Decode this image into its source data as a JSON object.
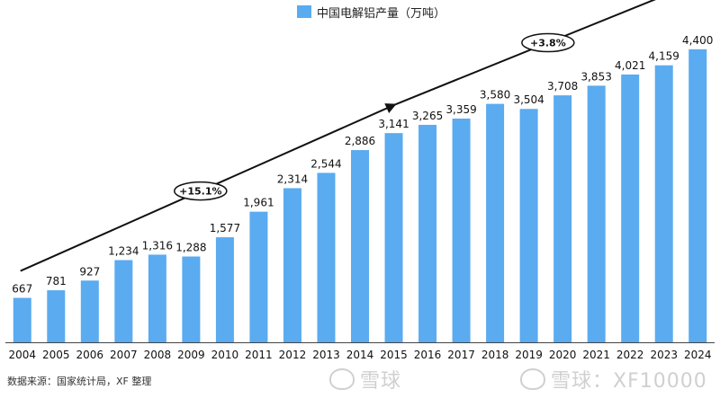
{
  "legend": {
    "label": "中国电解铝产量（万吨）",
    "color": "#5aabf0"
  },
  "source": "数据来源：国家统计局，XF 整理",
  "watermarks": [
    {
      "text": "雪球"
    },
    {
      "text": "雪球：XF10000"
    }
  ],
  "chart_data": {
    "type": "bar",
    "categories": [
      "2004",
      "2005",
      "2006",
      "2007",
      "2008",
      "2009",
      "2010",
      "2011",
      "2012",
      "2013",
      "2014",
      "2015",
      "2016",
      "2017",
      "2018",
      "2019",
      "2020",
      "2021",
      "2022",
      "2023",
      "2024"
    ],
    "series": [
      {
        "name": "中国电解铝产量（万吨）",
        "values": [
          667,
          781,
          927,
          1234,
          1316,
          1288,
          1577,
          1961,
          2314,
          2544,
          2886,
          3141,
          3265,
          3359,
          3580,
          3504,
          3708,
          3853,
          4021,
          4159,
          4400
        ]
      }
    ],
    "data_labels": [
      "667",
      "781",
      "927",
      "1,234",
      "1,316",
      "1,288",
      "1,577",
      "1,961",
      "2,314",
      "2,544",
      "2,886",
      "3,141",
      "3,265",
      "3,359",
      "3,580",
      "3,504",
      "3,708",
      "3,853",
      "4,021",
      "4,159",
      "4,400"
    ],
    "ylim": [
      0,
      4600
    ],
    "grid": false,
    "legend_position": "top-center",
    "annotations": [
      {
        "label": "+15.1%",
        "from": "2004",
        "to": "2015"
      },
      {
        "label": "+3.8%",
        "from": "2015",
        "to": "2024"
      }
    ]
  }
}
